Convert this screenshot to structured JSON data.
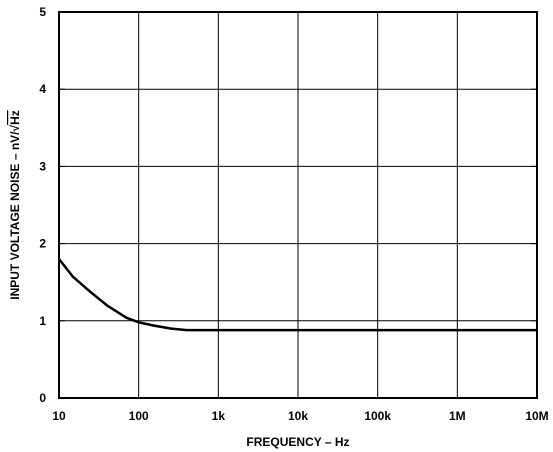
{
  "chart_data": {
    "type": "line",
    "title": "",
    "xlabel": "FREQUENCY – Hz",
    "ylabel": "INPUT VOLTAGE NOISE – nV/√Hz",
    "ylabel_parts": {
      "main": "INPUT VOLTAGE NOISE – nV/",
      "radical": "√",
      "under_radical": "Hz"
    },
    "x_scale": "log",
    "xlim": [
      10,
      10000000
    ],
    "ylim": [
      0,
      5
    ],
    "grid": true,
    "x_ticks": [
      {
        "value": 10,
        "label": "10"
      },
      {
        "value": 100,
        "label": "100"
      },
      {
        "value": 1000,
        "label": "1k"
      },
      {
        "value": 10000,
        "label": "10k"
      },
      {
        "value": 100000,
        "label": "100k"
      },
      {
        "value": 1000000,
        "label": "1M"
      },
      {
        "value": 10000000,
        "label": "10M"
      }
    ],
    "y_ticks": [
      {
        "value": 0,
        "label": "0"
      },
      {
        "value": 1,
        "label": "1"
      },
      {
        "value": 2,
        "label": "2"
      },
      {
        "value": 3,
        "label": "3"
      },
      {
        "value": 4,
        "label": "4"
      },
      {
        "value": 5,
        "label": "5"
      }
    ],
    "series": [
      {
        "color": "#000000",
        "points": [
          {
            "x": 10,
            "y": 1.8
          },
          {
            "x": 15,
            "y": 1.57
          },
          {
            "x": 25,
            "y": 1.37
          },
          {
            "x": 40,
            "y": 1.2
          },
          {
            "x": 70,
            "y": 1.04
          },
          {
            "x": 100,
            "y": 0.98
          },
          {
            "x": 150,
            "y": 0.94
          },
          {
            "x": 250,
            "y": 0.9
          },
          {
            "x": 400,
            "y": 0.88
          },
          {
            "x": 10000000,
            "y": 0.88
          }
        ]
      }
    ]
  }
}
